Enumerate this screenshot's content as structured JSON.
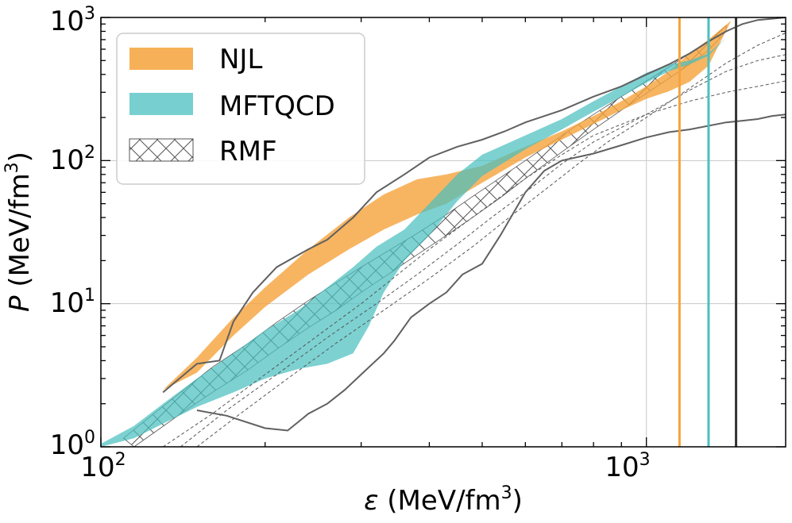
{
  "chart_data": {
    "type": "area",
    "x_scale": "log",
    "y_scale": "log",
    "xlim": [
      100,
      1800
    ],
    "ylim": [
      1,
      1000
    ],
    "xlabel": {
      "symbol": "ε",
      "text": "(MeV/fm",
      "sup": "3",
      "close": ")"
    },
    "ylabel": {
      "symbol": "P",
      "text": "(MeV/fm",
      "sup": "3",
      "close": ")"
    },
    "x_ticks": [
      {
        "value": 100,
        "base": "10",
        "exp": "2"
      },
      {
        "value": 1000,
        "base": "10",
        "exp": "3"
      }
    ],
    "y_ticks": [
      {
        "value": 1,
        "base": "10",
        "exp": "0"
      },
      {
        "value": 10,
        "base": "10",
        "exp": "1"
      },
      {
        "value": 100,
        "base": "10",
        "exp": "2"
      },
      {
        "value": 1000,
        "base": "10",
        "exp": "3"
      }
    ],
    "grid": true,
    "legend_position": "top-left",
    "colors": {
      "NJL": "#f5a33b",
      "MFTQCD": "#4bbfbf",
      "RMF": "#555555",
      "outer": "#606060",
      "maxmass_black": "#333333"
    },
    "series": [
      {
        "name": "NJL",
        "kind": "band",
        "upper": [
          [
            130,
            2.5
          ],
          [
            150,
            4.2
          ],
          [
            175,
            8.0
          ],
          [
            200,
            13
          ],
          [
            240,
            24
          ],
          [
            285,
            40
          ],
          [
            330,
            58
          ],
          [
            380,
            74
          ],
          [
            430,
            80
          ],
          [
            500,
            92
          ],
          [
            600,
            125
          ],
          [
            700,
            160
          ],
          [
            800,
            205
          ],
          [
            900,
            260
          ],
          [
            1000,
            330
          ],
          [
            1100,
            420
          ],
          [
            1200,
            560
          ],
          [
            1300,
            700
          ],
          [
            1430,
            950
          ]
        ],
        "lower": [
          [
            130,
            2.5
          ],
          [
            150,
            3.3
          ],
          [
            175,
            6.0
          ],
          [
            200,
            9.5
          ],
          [
            240,
            16
          ],
          [
            285,
            24
          ],
          [
            330,
            33
          ],
          [
            380,
            42
          ],
          [
            430,
            50
          ],
          [
            500,
            70
          ],
          [
            600,
            105
          ],
          [
            700,
            140
          ],
          [
            800,
            180
          ],
          [
            900,
            225
          ],
          [
            1000,
            270
          ],
          [
            1100,
            305
          ],
          [
            1200,
            355
          ],
          [
            1300,
            460
          ],
          [
            1430,
            950
          ]
        ]
      },
      {
        "name": "MFTQCD",
        "kind": "band",
        "upper": [
          [
            100,
            1.05
          ],
          [
            115,
            1.4
          ],
          [
            130,
            2.0
          ],
          [
            150,
            3.0
          ],
          [
            175,
            4.5
          ],
          [
            200,
            6.5
          ],
          [
            230,
            9.0
          ],
          [
            260,
            13
          ],
          [
            290,
            18
          ],
          [
            320,
            25
          ],
          [
            360,
            33
          ],
          [
            400,
            50
          ],
          [
            450,
            80
          ],
          [
            500,
            110
          ],
          [
            600,
            150
          ],
          [
            700,
            195
          ],
          [
            800,
            260
          ],
          [
            900,
            330
          ],
          [
            1000,
            410
          ],
          [
            1100,
            470
          ],
          [
            1200,
            500
          ],
          [
            1300,
            560
          ],
          [
            1400,
            720
          ]
        ],
        "lower": [
          [
            100,
            1.0
          ],
          [
            115,
            1.15
          ],
          [
            130,
            1.45
          ],
          [
            150,
            1.9
          ],
          [
            175,
            2.4
          ],
          [
            200,
            3.0
          ],
          [
            230,
            3.5
          ],
          [
            260,
            3.8
          ],
          [
            290,
            4.5
          ],
          [
            310,
            7.0
          ],
          [
            330,
            12
          ],
          [
            360,
            20
          ],
          [
            400,
            30
          ],
          [
            450,
            52
          ],
          [
            500,
            78
          ],
          [
            600,
            120
          ],
          [
            700,
            165
          ],
          [
            800,
            220
          ],
          [
            900,
            280
          ],
          [
            1000,
            350
          ],
          [
            1100,
            420
          ],
          [
            1200,
            470
          ],
          [
            1300,
            540
          ],
          [
            1400,
            720
          ]
        ]
      },
      {
        "name": "RMF",
        "kind": "hatched-band",
        "upper": [
          [
            110,
            1.15
          ],
          [
            125,
            1.7
          ],
          [
            140,
            2.4
          ],
          [
            160,
            3.6
          ],
          [
            185,
            5.2
          ],
          [
            210,
            7.4
          ],
          [
            240,
            10.5
          ],
          [
            270,
            14
          ],
          [
            300,
            18
          ],
          [
            340,
            24
          ],
          [
            380,
            31
          ],
          [
            430,
            42
          ],
          [
            480,
            56
          ],
          [
            540,
            76
          ],
          [
            600,
            100
          ],
          [
            700,
            150
          ],
          [
            800,
            210
          ],
          [
            900,
            280
          ],
          [
            1000,
            360
          ],
          [
            1100,
            450
          ],
          [
            1200,
            560
          ],
          [
            1300,
            680
          ],
          [
            1400,
            880
          ]
        ],
        "lower": [
          [
            115,
            1.0
          ],
          [
            125,
            1.25
          ],
          [
            140,
            1.7
          ],
          [
            160,
            2.4
          ],
          [
            185,
            3.4
          ],
          [
            210,
            4.8
          ],
          [
            240,
            6.8
          ],
          [
            270,
            9.0
          ],
          [
            300,
            12
          ],
          [
            340,
            16.5
          ],
          [
            380,
            22
          ],
          [
            430,
            30
          ],
          [
            480,
            40
          ],
          [
            540,
            55
          ],
          [
            600,
            75
          ],
          [
            700,
            115
          ],
          [
            800,
            165
          ],
          [
            900,
            225
          ],
          [
            1000,
            295
          ],
          [
            1100,
            375
          ],
          [
            1200,
            470
          ],
          [
            1300,
            590
          ],
          [
            1400,
            800
          ]
        ]
      }
    ],
    "outer_envelope": {
      "upper": [
        [
          130,
          2.4
        ],
        [
          150,
          3.8
        ],
        [
          165,
          4.0
        ],
        [
          175,
          7.5
        ],
        [
          190,
          12
        ],
        [
          210,
          18
        ],
        [
          240,
          24
        ],
        [
          260,
          28
        ],
        [
          290,
          40
        ],
        [
          320,
          60
        ],
        [
          360,
          80
        ],
        [
          400,
          105
        ],
        [
          450,
          125
        ],
        [
          500,
          140
        ],
        [
          550,
          160
        ],
        [
          600,
          185
        ],
        [
          700,
          225
        ],
        [
          800,
          280
        ],
        [
          900,
          330
        ],
        [
          1000,
          400
        ],
        [
          1100,
          470
        ],
        [
          1200,
          560
        ],
        [
          1300,
          680
        ],
        [
          1400,
          800
        ],
        [
          1500,
          900
        ],
        [
          1600,
          960
        ],
        [
          1800,
          1000
        ]
      ],
      "lower": [
        [
          150,
          1.8
        ],
        [
          170,
          1.65
        ],
        [
          200,
          1.35
        ],
        [
          220,
          1.3
        ],
        [
          240,
          1.7
        ],
        [
          260,
          2.0
        ],
        [
          280,
          2.5
        ],
        [
          300,
          3.2
        ],
        [
          330,
          4.5
        ],
        [
          345,
          5.5
        ],
        [
          370,
          8
        ],
        [
          400,
          10
        ],
        [
          430,
          12
        ],
        [
          460,
          16
        ],
        [
          500,
          19
        ],
        [
          540,
          30
        ],
        [
          600,
          60
        ],
        [
          650,
          85
        ],
        [
          700,
          100
        ],
        [
          800,
          112
        ],
        [
          900,
          128
        ],
        [
          1000,
          145
        ],
        [
          1100,
          158
        ],
        [
          1200,
          165
        ],
        [
          1300,
          175
        ],
        [
          1400,
          185
        ],
        [
          1500,
          190
        ],
        [
          1600,
          195
        ],
        [
          1700,
          205
        ],
        [
          1800,
          210
        ]
      ]
    },
    "dashed_curves": [
      [
        [
          130,
          1.0
        ],
        [
          160,
          1.7
        ],
        [
          200,
          3.2
        ],
        [
          250,
          6.0
        ],
        [
          300,
          10
        ],
        [
          350,
          16
        ],
        [
          400,
          24
        ],
        [
          500,
          45
        ],
        [
          600,
          75
        ],
        [
          700,
          110
        ],
        [
          800,
          150
        ],
        [
          1000,
          210
        ],
        [
          1200,
          260
        ],
        [
          1400,
          300
        ],
        [
          1600,
          330
        ],
        [
          1800,
          360
        ]
      ],
      [
        [
          140,
          1.0
        ],
        [
          170,
          1.8
        ],
        [
          210,
          3.2
        ],
        [
          260,
          5.8
        ],
        [
          320,
          10
        ],
        [
          380,
          16
        ],
        [
          450,
          26
        ],
        [
          520,
          40
        ],
        [
          600,
          60
        ],
        [
          700,
          95
        ],
        [
          800,
          135
        ],
        [
          1000,
          210
        ],
        [
          1200,
          310
        ],
        [
          1400,
          420
        ],
        [
          1600,
          500
        ],
        [
          1800,
          550
        ]
      ],
      [
        [
          150,
          1.0
        ],
        [
          180,
          1.7
        ],
        [
          220,
          3.0
        ],
        [
          270,
          5.3
        ],
        [
          330,
          9
        ],
        [
          400,
          15
        ],
        [
          480,
          25
        ],
        [
          560,
          40
        ],
        [
          650,
          62
        ],
        [
          750,
          95
        ],
        [
          850,
          135
        ],
        [
          1000,
          200
        ],
        [
          1200,
          320
        ],
        [
          1400,
          480
        ],
        [
          1600,
          640
        ],
        [
          1800,
          780
        ]
      ]
    ],
    "vertical_lines": [
      {
        "name": "NJL",
        "x": 1150,
        "color": "#f5a33b"
      },
      {
        "name": "MFTQCD",
        "x": 1300,
        "color": "#4bbfbf"
      },
      {
        "name": "RMF",
        "x": 1460,
        "color": "#333333"
      }
    ],
    "legend": [
      {
        "label": "NJL",
        "style": "fill",
        "color": "#f5a33b"
      },
      {
        "label": "MFTQCD",
        "style": "fill",
        "color": "#4bbfbf"
      },
      {
        "label": "RMF",
        "style": "hatch",
        "color": "#555555"
      }
    ]
  }
}
